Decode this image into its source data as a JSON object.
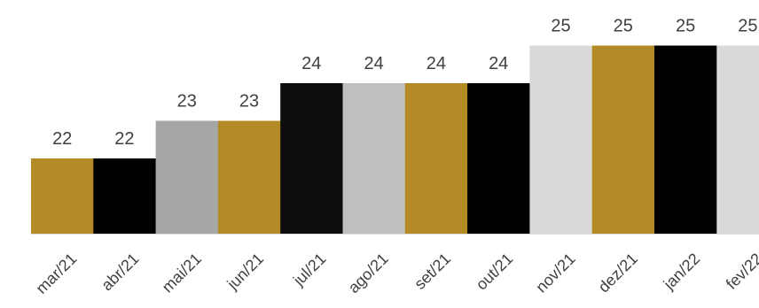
{
  "chart_data": {
    "type": "bar",
    "title": "",
    "xlabel": "",
    "ylabel": "",
    "ylim": [
      20,
      26
    ],
    "grid": false,
    "legend": "none",
    "categories": [
      "mar/21",
      "abr/21",
      "mai/21",
      "jun/21",
      "jul/21",
      "ago/21",
      "set/21",
      "out/21",
      "nov/21",
      "dez/21",
      "jan/22",
      "fev/22"
    ],
    "values": [
      22,
      22,
      23,
      23,
      24,
      24,
      24,
      24,
      25,
      25,
      25,
      25
    ],
    "data_labels": [
      "22",
      "22",
      "23",
      "23",
      "24",
      "24",
      "24",
      "24",
      "25",
      "25",
      "25",
      "25"
    ],
    "bar_colors": [
      "#B38A25",
      "#000000",
      "#A6A6A6",
      "#B38A25",
      "#0D0D0D",
      "#BFBFBF",
      "#B38A25",
      "#000000",
      "#D9D9D9",
      "#B38A25",
      "#000000",
      "#D9D9D9"
    ]
  }
}
